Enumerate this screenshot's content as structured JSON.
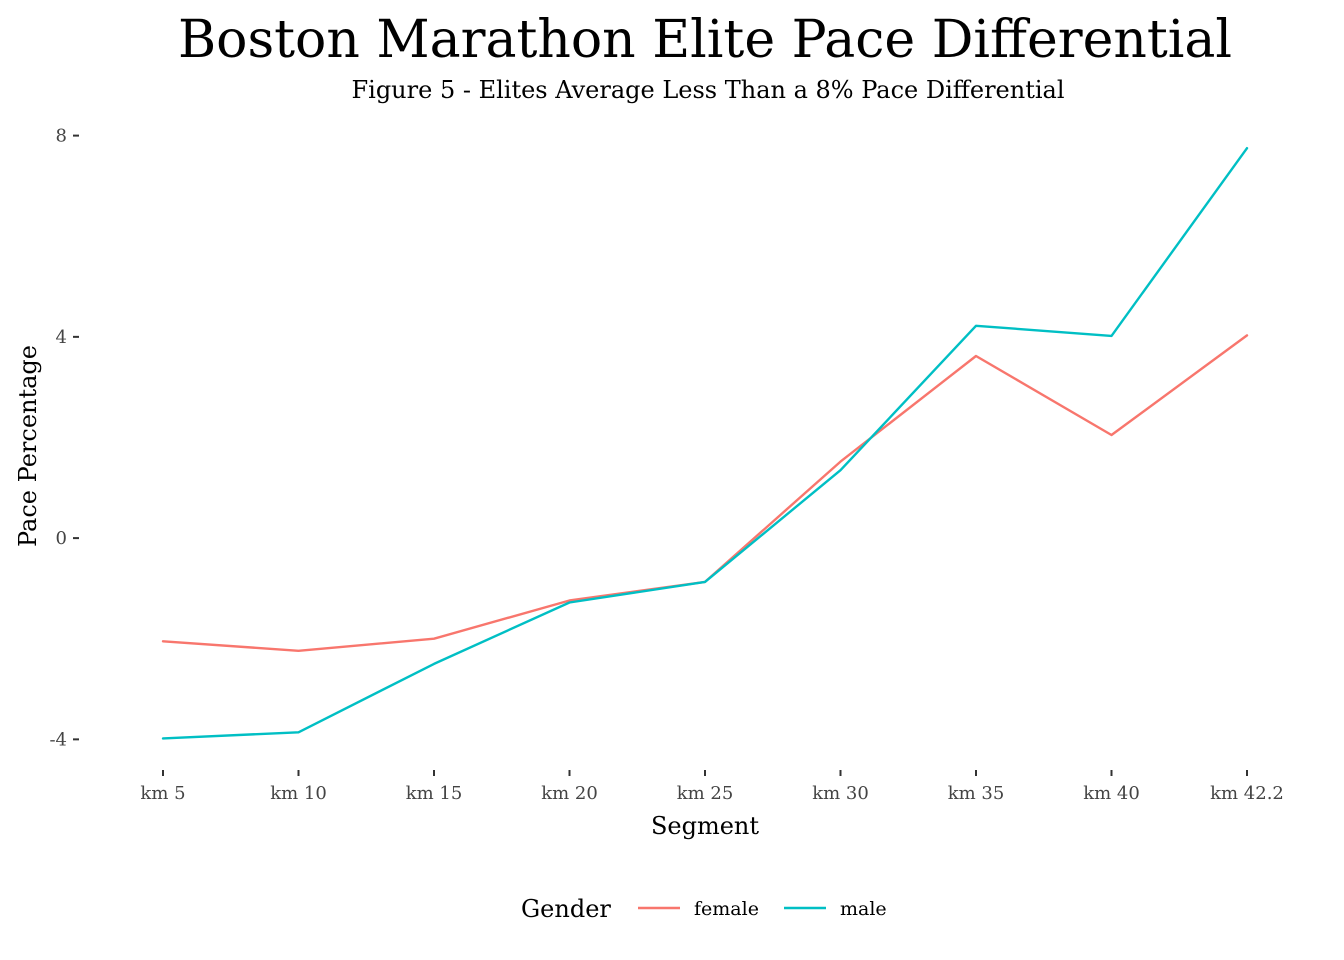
{
  "chart_data": {
    "type": "line",
    "title": "Boston Marathon Elite Pace Differential",
    "subtitle": "Figure 5 - Elites Average Less Than a 8% Pace Differential",
    "xlabel": "Segment",
    "ylabel": "Pace Percentage",
    "categories": [
      "km 5",
      "km 10",
      "km 15",
      "km 20",
      "km 25",
      "km 30",
      "km 35",
      "km 40",
      "km 42.2"
    ],
    "y_ticks": [
      -4,
      0,
      4,
      8
    ],
    "ylim": [
      -4.45,
      8.35
    ],
    "grid": false,
    "legend": {
      "title": "Gender",
      "position": "bottom"
    },
    "series": [
      {
        "name": "female",
        "color": "#F8766D",
        "values": [
          -2.05,
          -2.24,
          -2.0,
          -1.24,
          -0.87,
          1.52,
          3.62,
          2.05,
          4.03
        ]
      },
      {
        "name": "male",
        "color": "#00BFC4",
        "values": [
          -3.98,
          -3.86,
          -2.5,
          -1.28,
          -0.87,
          1.35,
          4.22,
          4.02,
          7.75
        ]
      }
    ]
  }
}
